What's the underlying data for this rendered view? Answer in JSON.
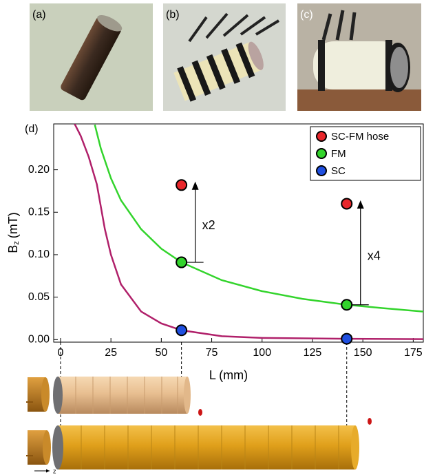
{
  "panels": [
    "(a)",
    "(b)",
    "(c)"
  ],
  "chart_data": {
    "type": "scatter",
    "panel_label": "(d)",
    "x_label": "L (mm)",
    "y_label": {
      "main": "B",
      "sub": "z",
      "unit": "(mT)"
    },
    "xlim": [
      -3.4,
      180
    ],
    "ylim": [
      -0.003,
      0.254
    ],
    "xticks": [
      0,
      25,
      50,
      75,
      100,
      125,
      150,
      175
    ],
    "yticks": [
      {
        "value": 0,
        "label": "0.00"
      },
      {
        "value": 0.05,
        "label": "0.05"
      },
      {
        "value": 0.1,
        "label": "0.10"
      },
      {
        "value": 0.15,
        "label": "0.15"
      },
      {
        "value": 0.2,
        "label": "0.20"
      }
    ],
    "x": [
      60,
      142
    ],
    "series": [
      {
        "name": "SC-FM hose",
        "color": "#e8262b",
        "values": [
          0.182,
          0.16
        ]
      },
      {
        "name": "FM",
        "color": "#33d42c",
        "values": [
          0.091,
          0.041
        ]
      },
      {
        "name": "SC",
        "color": "#1f4fe0",
        "values": [
          0.011,
          0.001
        ]
      }
    ],
    "curves": [
      {
        "color": "#33d42c",
        "x": [
          17,
          20,
          25,
          30,
          40,
          50,
          60,
          80,
          100,
          120,
          142,
          160,
          180
        ],
        "values": [
          0.253,
          0.225,
          0.19,
          0.164,
          0.13,
          0.107,
          0.091,
          0.07,
          0.057,
          0.048,
          0.041,
          0.037,
          0.033
        ]
      },
      {
        "color": "#b0206a",
        "x": [
          7,
          10,
          14,
          18,
          22,
          25,
          30,
          40,
          50,
          60,
          80,
          100,
          142,
          180
        ],
        "values": [
          0.254,
          0.24,
          0.215,
          0.183,
          0.13,
          0.1,
          0.065,
          0.033,
          0.019,
          0.011,
          0.004,
          0.002,
          0.001,
          0.0005
        ]
      }
    ],
    "annotations": [
      "x2",
      "x4"
    ],
    "legend": "top-right"
  },
  "axis_label": "z"
}
